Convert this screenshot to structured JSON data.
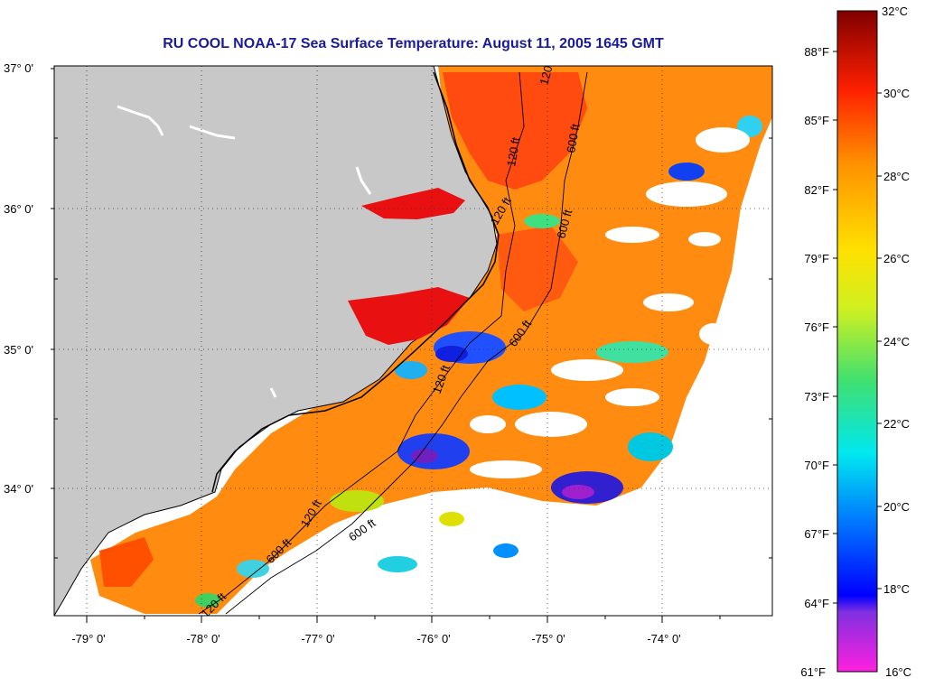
{
  "title": "RU COOL  NOAA-17  Sea Surface Temperature:  August 11, 2005 1645 GMT",
  "map": {
    "land_color": "#c8c8c8",
    "no_data_color": "#ffffff",
    "lat_labels": [
      "37° 0'",
      "36° 0'",
      "35° 0'",
      "34° 0'"
    ],
    "lon_labels": [
      "-79° 0'",
      "-78° 0'",
      "-77° 0'",
      "-76° 0'",
      "-75° 0'",
      "-74° 0'"
    ],
    "contour_labels": [
      "120 ft",
      "600 ft",
      "120 ft",
      "600 ft",
      "120 ft",
      "600 ft",
      "120 ft",
      "600 ft",
      "120 ft",
      "600 ft",
      "120 ft"
    ]
  },
  "colorbar": {
    "fahrenheit_labels": [
      "88°F",
      "85°F",
      "82°F",
      "79°F",
      "76°F",
      "73°F",
      "70°F",
      "67°F",
      "64°F",
      "61°F"
    ],
    "celsius_labels": [
      "32°C",
      "30°C",
      "28°C",
      "26°C",
      "24°C",
      "22°C",
      "20°C",
      "18°C",
      "16°C"
    ],
    "colors": [
      "#e020f0",
      "#7020e0",
      "#0010ff",
      "#00b0ff",
      "#00e0e0",
      "#40e080",
      "#d0f000",
      "#ffe000",
      "#ffa000",
      "#ff5000",
      "#e00000",
      "#800000"
    ]
  }
}
